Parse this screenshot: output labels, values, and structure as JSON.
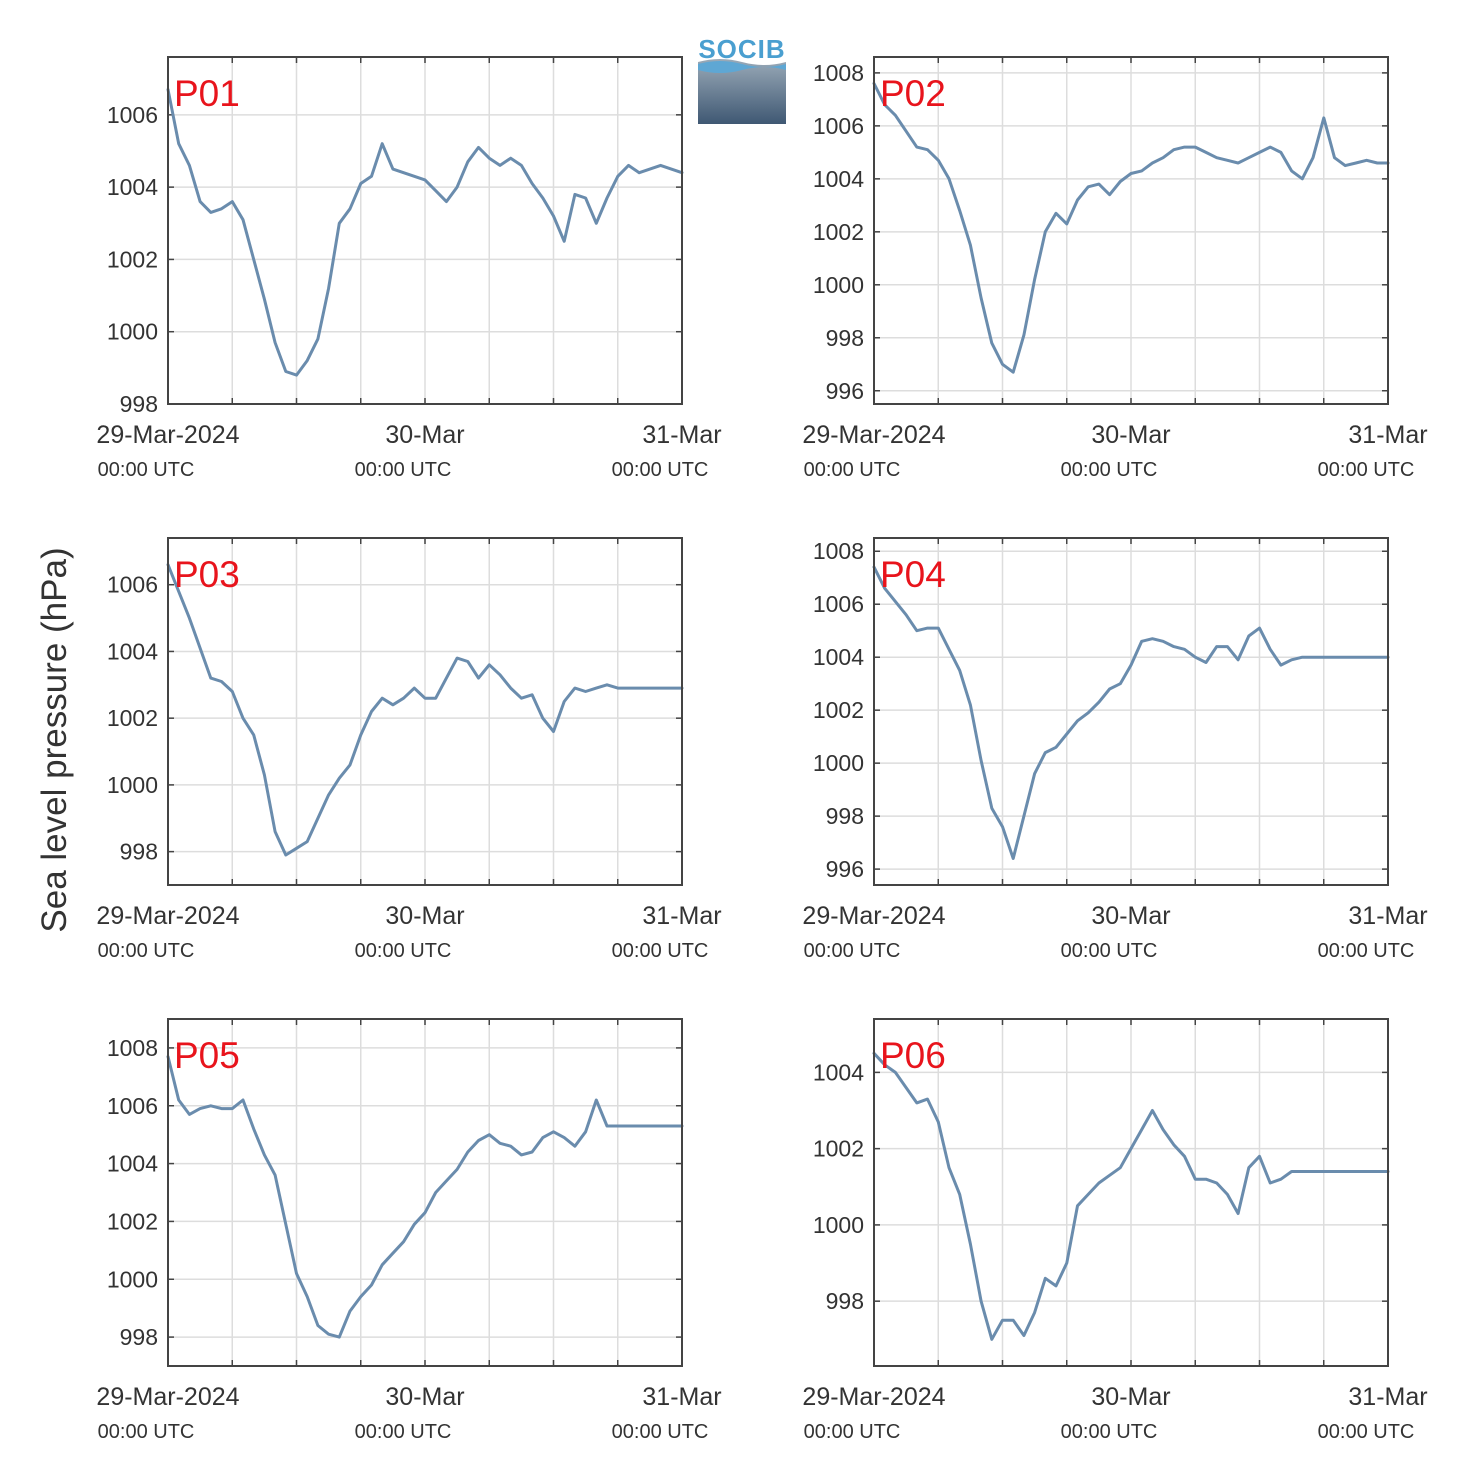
{
  "figure": {
    "ylabel": "Sea level pressure (hPa)",
    "logo_text": "SOCIB",
    "x_tick_main": [
      "29-Mar-2024",
      "30-Mar",
      "31-Mar"
    ],
    "x_tick_sub": [
      "00:00 UTC",
      "00:00 UTC",
      "00:00 UTC"
    ],
    "colors": {
      "line": "#6a8cad",
      "label": "#e8141c",
      "grid": "#dddddd",
      "axis": "#444444"
    }
  },
  "chart_data": [
    {
      "type": "line",
      "label": "P01",
      "xlim": [
        0,
        48
      ],
      "ylim": [
        998,
        1007.6
      ],
      "yticks": [
        998,
        1000,
        1002,
        1004,
        1006
      ],
      "x": [
        0,
        1,
        2,
        3,
        4,
        5,
        6,
        7,
        8,
        9,
        10,
        11,
        12,
        13,
        14,
        15,
        16,
        17,
        18,
        19,
        20,
        21,
        22,
        23,
        24,
        25,
        26,
        27,
        28,
        29,
        30,
        31,
        32,
        33,
        34,
        35,
        36,
        37,
        38,
        39,
        40,
        41,
        42,
        43,
        44,
        45,
        46,
        47,
        48
      ],
      "y": [
        1006.7,
        1005.2,
        1004.6,
        1003.6,
        1003.3,
        1003.4,
        1003.6,
        1003.1,
        1002.0,
        1000.9,
        999.7,
        998.9,
        998.8,
        999.2,
        999.8,
        1001.2,
        1003.0,
        1003.4,
        1004.1,
        1004.3,
        1005.2,
        1004.5,
        1004.4,
        1004.3,
        1004.2,
        1003.9,
        1003.6,
        1004.0,
        1004.7,
        1005.1,
        1004.8,
        1004.6,
        1004.8,
        1004.6,
        1004.1,
        1003.7,
        1003.2,
        1002.5,
        1003.8,
        1003.7,
        1003.0,
        1003.7,
        1004.3,
        1004.6,
        1004.4,
        1004.5,
        1004.6,
        1004.5,
        1004.4
      ]
    },
    {
      "type": "line",
      "label": "P02",
      "xlim": [
        0,
        48
      ],
      "ylim": [
        995.5,
        1008.6
      ],
      "yticks": [
        996,
        998,
        1000,
        1002,
        1004,
        1006,
        1008
      ],
      "x": [
        0,
        1,
        2,
        3,
        4,
        5,
        6,
        7,
        8,
        9,
        10,
        11,
        12,
        13,
        14,
        15,
        16,
        17,
        18,
        19,
        20,
        21,
        22,
        23,
        24,
        25,
        26,
        27,
        28,
        29,
        30,
        31,
        32,
        33,
        34,
        35,
        36,
        37,
        38,
        39,
        40,
        41,
        42,
        43,
        44,
        45,
        46,
        47,
        48
      ],
      "y": [
        1007.6,
        1006.8,
        1006.4,
        1005.8,
        1005.2,
        1005.1,
        1004.7,
        1004.0,
        1002.8,
        1001.5,
        999.5,
        997.8,
        997.0,
        996.7,
        998.1,
        1000.2,
        1002.0,
        1002.7,
        1002.3,
        1003.2,
        1003.7,
        1003.8,
        1003.4,
        1003.9,
        1004.2,
        1004.3,
        1004.6,
        1004.8,
        1005.1,
        1005.2,
        1005.2,
        1005.0,
        1004.8,
        1004.7,
        1004.6,
        1004.8,
        1005.0,
        1005.2,
        1005.0,
        1004.3,
        1004.0,
        1004.8,
        1006.3,
        1004.8,
        1004.5,
        1004.6,
        1004.7,
        1004.6,
        1004.6
      ]
    },
    {
      "type": "line",
      "label": "P03",
      "xlim": [
        0,
        48
      ],
      "ylim": [
        997,
        1007.4
      ],
      "yticks": [
        998,
        1000,
        1002,
        1004,
        1006
      ],
      "x": [
        0,
        1,
        2,
        3,
        4,
        5,
        6,
        7,
        8,
        9,
        10,
        11,
        12,
        13,
        14,
        15,
        16,
        17,
        18,
        19,
        20,
        21,
        22,
        23,
        24,
        25,
        26,
        27,
        28,
        29,
        30,
        31,
        32,
        33,
        34,
        35,
        36,
        37,
        38,
        39,
        40,
        41,
        42,
        43,
        44,
        45,
        46,
        47,
        48
      ],
      "y": [
        1006.6,
        1005.8,
        1005.0,
        1004.1,
        1003.2,
        1003.1,
        1002.8,
        1002.0,
        1001.5,
        1000.3,
        998.6,
        997.9,
        998.1,
        998.3,
        999.0,
        999.7,
        1000.2,
        1000.6,
        1001.5,
        1002.2,
        1002.6,
        1002.4,
        1002.6,
        1002.9,
        1002.6,
        1002.6,
        1003.2,
        1003.8,
        1003.7,
        1003.2,
        1003.6,
        1003.3,
        1002.9,
        1002.6,
        1002.7,
        1002.0,
        1001.6,
        1002.5,
        1002.9,
        1002.8,
        1002.9,
        1003.0,
        1002.9,
        1002.9,
        1002.9,
        1002.9,
        1002.9,
        1002.9,
        1002.9
      ]
    },
    {
      "type": "line",
      "label": "P04",
      "xlim": [
        0,
        48
      ],
      "ylim": [
        995.4,
        1008.5
      ],
      "yticks": [
        996,
        998,
        1000,
        1002,
        1004,
        1006,
        1008
      ],
      "x": [
        0,
        1,
        2,
        3,
        4,
        5,
        6,
        7,
        8,
        9,
        10,
        11,
        12,
        13,
        14,
        15,
        16,
        17,
        18,
        19,
        20,
        21,
        22,
        23,
        24,
        25,
        26,
        27,
        28,
        29,
        30,
        31,
        32,
        33,
        34,
        35,
        36,
        37,
        38,
        39,
        40,
        41,
        42,
        43,
        44,
        45,
        46,
        47,
        48
      ],
      "y": [
        1007.4,
        1006.6,
        1006.1,
        1005.6,
        1005.0,
        1005.1,
        1005.1,
        1004.3,
        1003.5,
        1002.2,
        1000.1,
        998.3,
        997.6,
        996.4,
        998.0,
        999.6,
        1000.4,
        1000.6,
        1001.1,
        1001.6,
        1001.9,
        1002.3,
        1002.8,
        1003.0,
        1003.7,
        1004.6,
        1004.7,
        1004.6,
        1004.4,
        1004.3,
        1004.0,
        1003.8,
        1004.4,
        1004.4,
        1003.9,
        1004.8,
        1005.1,
        1004.3,
        1003.7,
        1003.9,
        1004.0,
        1004.0,
        1004.0,
        1004.0,
        1004.0,
        1004.0,
        1004.0,
        1004.0,
        1004.0
      ]
    },
    {
      "type": "line",
      "label": "P05",
      "xlim": [
        0,
        48
      ],
      "ylim": [
        997,
        1009
      ],
      "yticks": [
        998,
        1000,
        1002,
        1004,
        1006,
        1008
      ],
      "x": [
        0,
        1,
        2,
        3,
        4,
        5,
        6,
        7,
        8,
        9,
        10,
        11,
        12,
        13,
        14,
        15,
        16,
        17,
        18,
        19,
        20,
        21,
        22,
        23,
        24,
        25,
        26,
        27,
        28,
        29,
        30,
        31,
        32,
        33,
        34,
        35,
        36,
        37,
        38,
        39,
        40,
        41,
        42,
        43,
        44,
        45,
        46,
        47,
        48
      ],
      "y": [
        1007.7,
        1006.2,
        1005.7,
        1005.9,
        1006.0,
        1005.9,
        1005.9,
        1006.2,
        1005.2,
        1004.3,
        1003.6,
        1001.9,
        1000.2,
        999.4,
        998.4,
        998.1,
        998.0,
        998.9,
        999.4,
        999.8,
        1000.5,
        1000.9,
        1001.3,
        1001.9,
        1002.3,
        1003.0,
        1003.4,
        1003.8,
        1004.4,
        1004.8,
        1005.0,
        1004.7,
        1004.6,
        1004.3,
        1004.4,
        1004.9,
        1005.1,
        1004.9,
        1004.6,
        1005.1,
        1006.2,
        1005.3,
        1005.3,
        1005.3,
        1005.3,
        1005.3,
        1005.3,
        1005.3,
        1005.3
      ]
    },
    {
      "type": "line",
      "label": "P06",
      "xlim": [
        0,
        48
      ],
      "ylim": [
        996.3,
        1005.4
      ],
      "yticks": [
        998,
        1000,
        1002,
        1004
      ],
      "x": [
        0,
        1,
        2,
        3,
        4,
        5,
        6,
        7,
        8,
        9,
        10,
        11,
        12,
        13,
        14,
        15,
        16,
        17,
        18,
        19,
        20,
        21,
        22,
        23,
        24,
        25,
        26,
        27,
        28,
        29,
        30,
        31,
        32,
        33,
        34,
        35,
        36,
        37,
        38,
        39,
        40,
        41,
        42,
        43,
        44,
        45,
        46,
        47,
        48
      ],
      "y": [
        1004.5,
        1004.2,
        1004.0,
        1003.6,
        1003.2,
        1003.3,
        1002.7,
        1001.5,
        1000.8,
        999.5,
        998.0,
        997.0,
        997.5,
        997.5,
        997.1,
        997.7,
        998.6,
        998.4,
        999.0,
        1000.5,
        1000.8,
        1001.1,
        1001.3,
        1001.5,
        1002.0,
        1002.5,
        1003.0,
        1002.5,
        1002.1,
        1001.8,
        1001.2,
        1001.2,
        1001.1,
        1000.8,
        1000.3,
        1001.5,
        1001.8,
        1001.1,
        1001.2,
        1001.4,
        1001.4,
        1001.4,
        1001.4,
        1001.4,
        1001.4,
        1001.4,
        1001.4,
        1001.4,
        1001.4
      ]
    }
  ]
}
